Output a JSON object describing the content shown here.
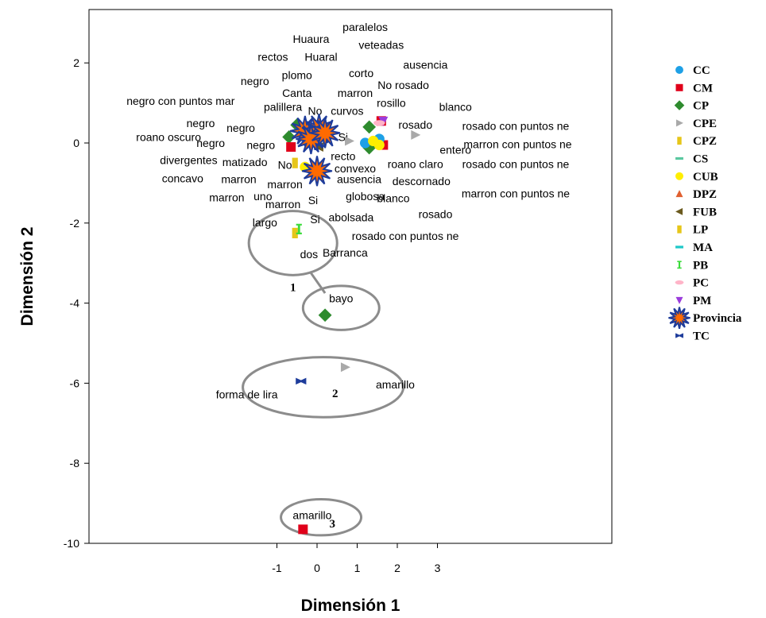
{
  "chart_data": {
    "type": "scatter",
    "xlabel": "Dimensión 1",
    "ylabel": "Dimensión 2",
    "xlim": [
      -5.5,
      7.2
    ],
    "ylim": [
      -10,
      3.3
    ],
    "x_ticks": [
      -1,
      0,
      1,
      2,
      3
    ],
    "y_ticks": [
      2,
      0,
      -2,
      -4,
      -6,
      -8,
      -10
    ],
    "legend_placement": "right",
    "legend": [
      {
        "code": "CC",
        "marker": "circle",
        "color": "#1ea0e6"
      },
      {
        "code": "CM",
        "marker": "square",
        "color": "#e0001a"
      },
      {
        "code": "CP",
        "marker": "diamond",
        "color": "#2e8b2e"
      },
      {
        "code": "CPE",
        "marker": "triangle-right",
        "color": "#a9a9a9"
      },
      {
        "code": "CPZ",
        "marker": "rect",
        "color": "#e6c619"
      },
      {
        "code": "CS",
        "marker": "dash",
        "color": "#5ac8a0"
      },
      {
        "code": "CUB",
        "marker": "circle",
        "color": "#ffee00"
      },
      {
        "code": "DPZ",
        "marker": "triangle-up",
        "color": "#e06030"
      },
      {
        "code": "FUB",
        "marker": "triangle-left",
        "color": "#6b5a1e"
      },
      {
        "code": "LP",
        "marker": "rect",
        "color": "#e6c619"
      },
      {
        "code": "MA",
        "marker": "dash",
        "color": "#1ec8c8"
      },
      {
        "code": "PB",
        "marker": "ibar",
        "color": "#3cdc3c"
      },
      {
        "code": "PC",
        "marker": "ellipse",
        "color": "#ffb4c8"
      },
      {
        "code": "PM",
        "marker": "triangle-down",
        "color": "#9b3cdc"
      },
      {
        "code": "Provincia",
        "marker": "star",
        "color": "#ff6a00"
      },
      {
        "code": "TC",
        "marker": "bowtie",
        "color": "#1e3c9b"
      }
    ],
    "labels": [
      {
        "text": "paralelos",
        "x": 1.2,
        "y": 2.9
      },
      {
        "text": "Huaura",
        "x": -0.15,
        "y": 2.6
      },
      {
        "text": "veteadas",
        "x": 1.6,
        "y": 2.45
      },
      {
        "text": "rectos",
        "x": -1.1,
        "y": 2.15
      },
      {
        "text": "Huaral",
        "x": 0.1,
        "y": 2.15
      },
      {
        "text": "ausencia",
        "x": 2.7,
        "y": 1.95
      },
      {
        "text": "negro",
        "x": -1.55,
        "y": 1.55
      },
      {
        "text": "plomo",
        "x": -0.5,
        "y": 1.7
      },
      {
        "text": "corto",
        "x": 1.1,
        "y": 1.75
      },
      {
        "text": "No rosado",
        "x": 2.15,
        "y": 1.45
      },
      {
        "text": "Canta",
        "x": -0.5,
        "y": 1.25
      },
      {
        "text": "marron",
        "x": 0.95,
        "y": 1.25
      },
      {
        "text": "negro con puntos mar",
        "x": -3.4,
        "y": 1.05
      },
      {
        "text": "rosillo",
        "x": 1.85,
        "y": 1.0
      },
      {
        "text": "palillera",
        "x": -0.85,
        "y": 0.9
      },
      {
        "text": "No",
        "x": -0.05,
        "y": 0.8
      },
      {
        "text": "curvos",
        "x": 0.75,
        "y": 0.8
      },
      {
        "text": "blanco",
        "x": 3.45,
        "y": 0.9
      },
      {
        "text": "negro",
        "x": -2.9,
        "y": 0.5
      },
      {
        "text": "negro",
        "x": -1.9,
        "y": 0.38
      },
      {
        "text": "rosado",
        "x": 2.45,
        "y": 0.46
      },
      {
        "text": "rosado con puntos ne",
        "x": 4.95,
        "y": 0.43
      },
      {
        "text": "roano oscuro",
        "x": -3.7,
        "y": 0.15
      },
      {
        "text": "Si",
        "x": 0.65,
        "y": 0.15
      },
      {
        "text": "negro",
        "x": -2.65,
        "y": 0.0
      },
      {
        "text": "negro",
        "x": -1.4,
        "y": -0.05
      },
      {
        "text": "entero",
        "x": 3.45,
        "y": -0.17
      },
      {
        "text": "marron con puntos ne",
        "x": 5.0,
        "y": -0.03
      },
      {
        "text": "recto",
        "x": 0.65,
        "y": -0.33
      },
      {
        "text": "divergentes",
        "x": -3.2,
        "y": -0.43
      },
      {
        "text": "matizado",
        "x": -1.8,
        "y": -0.48
      },
      {
        "text": "No",
        "x": -0.8,
        "y": -0.55
      },
      {
        "text": "convexo",
        "x": 0.95,
        "y": -0.63
      },
      {
        "text": "roano claro",
        "x": 2.45,
        "y": -0.53
      },
      {
        "text": "rosado con puntos ne",
        "x": 4.95,
        "y": -0.53
      },
      {
        "text": "concavo",
        "x": -3.35,
        "y": -0.88
      },
      {
        "text": "marron",
        "x": -1.95,
        "y": -0.9
      },
      {
        "text": "ausencia",
        "x": 1.05,
        "y": -0.9
      },
      {
        "text": "descornado",
        "x": 2.6,
        "y": -0.95
      },
      {
        "text": "marron",
        "x": -0.8,
        "y": -1.03
      },
      {
        "text": "marron",
        "x": -2.25,
        "y": -1.36
      },
      {
        "text": "uno",
        "x": -1.35,
        "y": -1.33
      },
      {
        "text": "globosa",
        "x": 1.2,
        "y": -1.33
      },
      {
        "text": "blanco",
        "x": 1.9,
        "y": -1.38
      },
      {
        "text": "marron con puntos ne",
        "x": 4.95,
        "y": -1.26
      },
      {
        "text": "Si",
        "x": -0.1,
        "y": -1.43
      },
      {
        "text": "marron",
        "x": -0.85,
        "y": -1.53
      },
      {
        "text": "Si",
        "x": -0.05,
        "y": -1.9
      },
      {
        "text": "abolsada",
        "x": 0.85,
        "y": -1.86
      },
      {
        "text": "rosado",
        "x": 2.95,
        "y": -1.78
      },
      {
        "text": "largo",
        "x": -1.3,
        "y": -1.98
      },
      {
        "text": "rosado con puntos ne",
        "x": 2.2,
        "y": -2.32
      },
      {
        "text": "dos",
        "x": -0.2,
        "y": -2.78
      },
      {
        "text": "Barranca",
        "x": 0.7,
        "y": -2.74
      },
      {
        "text": "bayo",
        "x": 0.6,
        "y": -3.88
      },
      {
        "text": "forma de lira",
        "x": -1.75,
        "y": -6.28
      },
      {
        "text": "amarillo",
        "x": 1.95,
        "y": -6.03
      },
      {
        "text": "amarillo",
        "x": -0.12,
        "y": -9.3
      }
    ],
    "points": [
      {
        "group": "CP",
        "x": -0.5,
        "y": 0.45
      },
      {
        "group": "CP",
        "x": -0.7,
        "y": 0.15
      },
      {
        "group": "CP",
        "x": 1.3,
        "y": 0.4
      },
      {
        "group": "CP",
        "x": 1.3,
        "y": -0.12
      },
      {
        "group": "CP",
        "x": 0.2,
        "y": -4.3
      },
      {
        "group": "CM",
        "x": -0.65,
        "y": -0.1
      },
      {
        "group": "CM",
        "x": 1.6,
        "y": 0.55
      },
      {
        "group": "CM",
        "x": 1.65,
        "y": -0.05
      },
      {
        "group": "CM",
        "x": -0.35,
        "y": -9.65
      },
      {
        "group": "CC",
        "x": 1.2,
        "y": 0.0
      },
      {
        "group": "CC",
        "x": 1.55,
        "y": 0.1
      },
      {
        "group": "CPE",
        "x": 0.8,
        "y": 0.05
      },
      {
        "group": "CPE",
        "x": 2.45,
        "y": 0.2
      },
      {
        "group": "CPE",
        "x": 0.7,
        "y": -5.6
      },
      {
        "group": "CUB",
        "x": -0.3,
        "y": -0.6
      },
      {
        "group": "CUB",
        "x": 1.4,
        "y": 0.05
      },
      {
        "group": "CUB",
        "x": 1.55,
        "y": -0.05
      },
      {
        "group": "CPZ",
        "x": -0.55,
        "y": -0.5
      },
      {
        "group": "LP",
        "x": -0.55,
        "y": -2.25
      },
      {
        "group": "PB",
        "x": -0.45,
        "y": -2.15
      },
      {
        "group": "PM",
        "x": 1.65,
        "y": 0.55
      },
      {
        "group": "PC",
        "x": 1.55,
        "y": 0.5
      },
      {
        "group": "CS",
        "x": 0.15,
        "y": 0.3
      },
      {
        "group": "FUB",
        "x": 0.05,
        "y": -0.1
      },
      {
        "group": "TC",
        "x": -0.4,
        "y": -5.95
      },
      {
        "group": "Provincia",
        "x": -0.3,
        "y": 0.3
      },
      {
        "group": "Provincia",
        "x": -0.05,
        "y": 0.2
      },
      {
        "group": "Provincia",
        "x": 0.05,
        "y": 0.35
      },
      {
        "group": "Provincia",
        "x": -0.15,
        "y": 0.1
      },
      {
        "group": "Provincia",
        "x": 0.2,
        "y": 0.25
      },
      {
        "group": "Provincia",
        "x": 0.0,
        "y": -0.7
      }
    ],
    "annotations": [
      {
        "number": "1",
        "x": -0.6,
        "y": -3.7,
        "ellipse": {
          "cx": -0.6,
          "cy": -2.5,
          "rx": 1.1,
          "ry": 0.8
        }
      },
      {
        "number": "2",
        "x": 0.45,
        "y": -6.35,
        "ellipse": {
          "cx": 0.15,
          "cy": -6.1,
          "rx": 2.0,
          "ry": 0.75
        }
      },
      {
        "number": "3",
        "x": 0.38,
        "y": -9.6,
        "ellipse": {
          "cx": 0.1,
          "cy": -9.35,
          "rx": 1.0,
          "ry": 0.45
        }
      },
      {
        "number": "",
        "x": 0.6,
        "y": -4.0,
        "ellipse": {
          "cx": 0.6,
          "cy": -4.12,
          "rx": 0.95,
          "ry": 0.55
        }
      }
    ]
  }
}
